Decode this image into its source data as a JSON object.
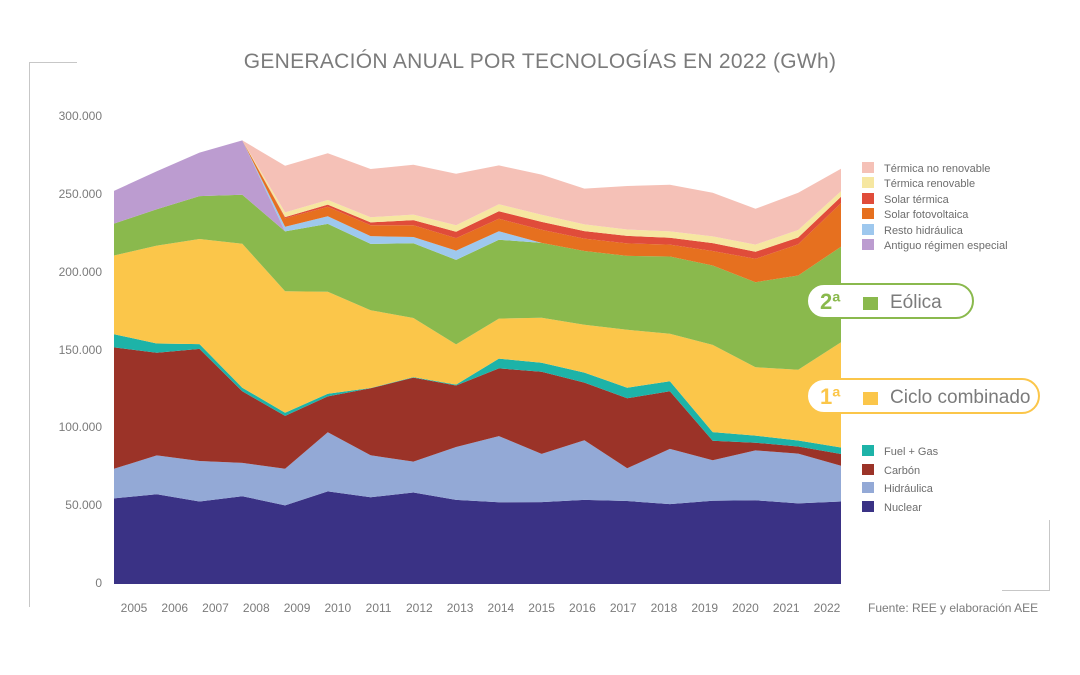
{
  "chart_data": {
    "type": "area",
    "title": "GENERACIÓN ANUAL POR TECNOLOGÍAS EN 2022 (GWh)",
    "source": "Fuente: REE y elaboración AEE",
    "x": [
      "2005",
      "2006",
      "2007",
      "2008",
      "2009",
      "2010",
      "2011",
      "2012",
      "2013",
      "2014",
      "2015",
      "2016",
      "2017",
      "2018",
      "2019",
      "2020",
      "2021",
      "2022"
    ],
    "y_ticks": [
      "300.000",
      "250.000",
      "200.000",
      "150.000",
      "100.000",
      "50.000",
      "0"
    ],
    "ylim": [
      0,
      300000
    ],
    "stacked": true,
    "legend_position": "right",
    "series": [
      {
        "name": "Nuclear",
        "color": "#3a3285",
        "values": [
          55000,
          57600,
          53000,
          56400,
          50500,
          59500,
          55700,
          58800,
          54000,
          52500,
          52600,
          54000,
          53300,
          51300,
          53500,
          53800,
          51800,
          53000
        ]
      },
      {
        "name": "Hidráulica",
        "color": "#93a9d6",
        "values": [
          19000,
          25000,
          26000,
          21400,
          23500,
          38000,
          27000,
          19800,
          34000,
          42500,
          31000,
          38400,
          21000,
          35500,
          26000,
          32000,
          32000,
          23000
        ]
      },
      {
        "name": "Carbón",
        "color": "#9b3328",
        "values": [
          78000,
          66000,
          72000,
          46000,
          34000,
          23000,
          43000,
          54000,
          39500,
          43500,
          52800,
          37000,
          45000,
          37000,
          12500,
          5000,
          4500,
          7500
        ]
      },
      {
        "name": "Fuel + Gas",
        "color": "#1db3a8",
        "values": [
          8500,
          5900,
          3100,
          2300,
          2000,
          1700,
          200,
          300,
          600,
          6300,
          5700,
          6400,
          6800,
          6400,
          5600,
          4500,
          3900,
          4200
        ]
      },
      {
        "name": "Ciclo combinado",
        "color": "#fbc64a",
        "values": [
          50500,
          62900,
          67500,
          92500,
          78000,
          65600,
          50000,
          38000,
          25800,
          25700,
          29000,
          30800,
          37200,
          30600,
          56000,
          44000,
          45400,
          67600
        ]
      },
      {
        "name": "Eólica",
        "color": "#8ab94d",
        "values": [
          20500,
          23300,
          27600,
          31400,
          38500,
          43500,
          42600,
          48000,
          54300,
          50700,
          48000,
          47300,
          47500,
          49600,
          51000,
          54600,
          60600,
          61400
        ]
      },
      {
        "name": "Antiguo régimen especial",
        "color": "#bc9cd0",
        "values": [
          21000,
          24500,
          27900,
          35000,
          0,
          0,
          0,
          0,
          0,
          0,
          0,
          0,
          0,
          0,
          0,
          0,
          0,
          0
        ]
      },
      {
        "name": "Resto hidráulica",
        "color": "#9ec8ee",
        "values": [
          0,
          0,
          0,
          0,
          3000,
          5000,
          5000,
          4000,
          6000,
          5400,
          0,
          0,
          0,
          0,
          0,
          0,
          0,
          0
        ]
      },
      {
        "name": "Solar fotovoltaica",
        "color": "#e6701f",
        "values": [
          0,
          0,
          0,
          0,
          5500,
          6000,
          7000,
          7500,
          8000,
          8000,
          8500,
          8000,
          8000,
          7600,
          9300,
          15000,
          20000,
          28000
        ]
      },
      {
        "name": "Solar térmica",
        "color": "#e04c3a",
        "values": [
          0,
          0,
          0,
          0,
          700,
          1400,
          1800,
          3400,
          4100,
          4800,
          5000,
          4800,
          4800,
          4400,
          5100,
          4500,
          4400,
          4100
        ]
      },
      {
        "name": "Térmica renovable",
        "color": "#f6e7a1",
        "values": [
          0,
          0,
          0,
          0,
          3000,
          3000,
          3300,
          3500,
          4200,
          4500,
          4600,
          4300,
          4100,
          4100,
          4300,
          4600,
          4800,
          3500
        ]
      },
      {
        "name": "Térmica no renovable",
        "color": "#f5c1b7",
        "values": [
          0,
          0,
          0,
          0,
          30000,
          30000,
          31000,
          32000,
          33000,
          25000,
          25800,
          23000,
          28000,
          30000,
          28000,
          23000,
          24000,
          14500
        ]
      }
    ],
    "legend_top": [
      "Térmica no renovable",
      "Térmica renovable",
      "Solar térmica",
      "Solar fotovoltaica",
      "Resto hidráulica",
      "Antiguo régimen especial"
    ],
    "legend_bottom": [
      "Fuel + Gas",
      "Carbón",
      "Hidráulica",
      "Nuclear"
    ],
    "highlights": [
      {
        "rank": "2ª",
        "label": "Eólica",
        "color": "#8ab94d"
      },
      {
        "rank": "1ª",
        "label": "Ciclo combinado",
        "color": "#fbc64a"
      }
    ]
  }
}
